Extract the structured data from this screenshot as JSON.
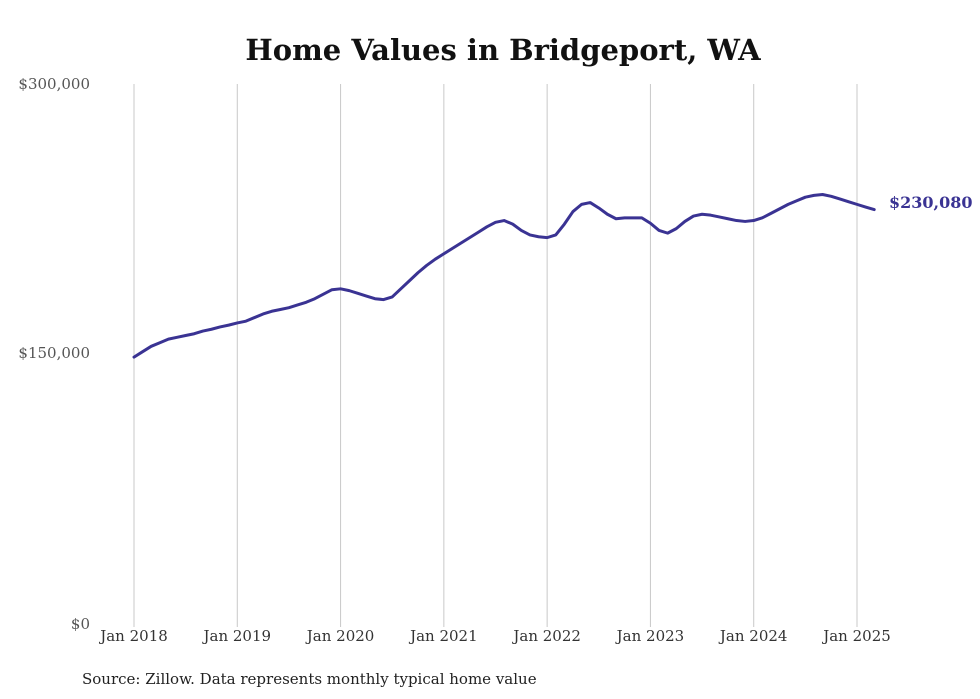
{
  "colors": {
    "line": "#3a3393",
    "grid": "#c8c8c8"
  },
  "source_note": "Source: Zillow. Data represents monthly typical home value",
  "chart_data": {
    "type": "line",
    "title": "Home Values in Bridgeport, WA",
    "xlabel": "",
    "ylabel": "",
    "ylim": [
      0,
      300000
    ],
    "yticks": [
      {
        "value": 0,
        "label": "$0"
      },
      {
        "value": 150000,
        "label": "$150,000"
      },
      {
        "value": 300000,
        "label": "$300,000"
      }
    ],
    "xticks": [
      {
        "x": "2018-01",
        "label": "Jan 2018"
      },
      {
        "x": "2019-01",
        "label": "Jan 2019"
      },
      {
        "x": "2020-01",
        "label": "Jan 2020"
      },
      {
        "x": "2021-01",
        "label": "Jan 2021"
      },
      {
        "x": "2022-01",
        "label": "Jan 2022"
      },
      {
        "x": "2023-01",
        "label": "Jan 2023"
      },
      {
        "x": "2024-01",
        "label": "Jan 2024"
      },
      {
        "x": "2025-01",
        "label": "Jan 2025"
      }
    ],
    "grid": "vertical",
    "end_label": "$230,080",
    "series": [
      {
        "x": [
          "2018-01",
          "2018-02",
          "2018-03",
          "2018-04",
          "2018-05",
          "2018-06",
          "2018-07",
          "2018-08",
          "2018-09",
          "2018-10",
          "2018-11",
          "2018-12",
          "2019-01",
          "2019-02",
          "2019-03",
          "2019-04",
          "2019-05",
          "2019-06",
          "2019-07",
          "2019-08",
          "2019-09",
          "2019-10",
          "2019-11",
          "2019-12",
          "2020-01",
          "2020-02",
          "2020-03",
          "2020-04",
          "2020-05",
          "2020-06",
          "2020-07",
          "2020-08",
          "2020-09",
          "2020-10",
          "2020-11",
          "2020-12",
          "2021-01",
          "2021-02",
          "2021-03",
          "2021-04",
          "2021-05",
          "2021-06",
          "2021-07",
          "2021-08",
          "2021-09",
          "2021-10",
          "2021-11",
          "2021-12",
          "2022-01",
          "2022-02",
          "2022-03",
          "2022-04",
          "2022-05",
          "2022-06",
          "2022-07",
          "2022-08",
          "2022-09",
          "2022-10",
          "2022-11",
          "2022-12",
          "2023-01",
          "2023-02",
          "2023-03",
          "2023-04",
          "2023-05",
          "2023-06",
          "2023-07",
          "2023-08",
          "2023-09",
          "2023-10",
          "2023-11",
          "2023-12",
          "2024-01",
          "2024-02",
          "2024-03",
          "2024-04",
          "2024-05",
          "2024-06",
          "2024-07",
          "2024-08",
          "2024-09",
          "2024-10",
          "2024-11",
          "2024-12",
          "2025-01",
          "2025-02",
          "2025-03"
        ],
        "values": [
          148000,
          151000,
          154000,
          156000,
          158000,
          159000,
          160000,
          161000,
          162500,
          163500,
          164800,
          165800,
          167000,
          168000,
          170000,
          172000,
          173500,
          174500,
          175500,
          177000,
          178500,
          180500,
          183000,
          185500,
          186000,
          185000,
          183500,
          182000,
          180500,
          180000,
          181500,
          186000,
          190500,
          195000,
          199000,
          202500,
          205500,
          208500,
          211500,
          214500,
          217500,
          220500,
          223000,
          224000,
          222000,
          218500,
          216000,
          215000,
          214500,
          216000,
          222000,
          229000,
          233000,
          234000,
          231000,
          227500,
          225000,
          225500,
          225500,
          225500,
          222500,
          218500,
          217000,
          219500,
          223500,
          226500,
          227500,
          227000,
          226000,
          225000,
          224000,
          223500,
          224000,
          225500,
          228000,
          230500,
          233000,
          235000,
          237000,
          238000,
          238500,
          237500,
          236000,
          234500,
          233000,
          231500,
          230080
        ]
      }
    ]
  }
}
